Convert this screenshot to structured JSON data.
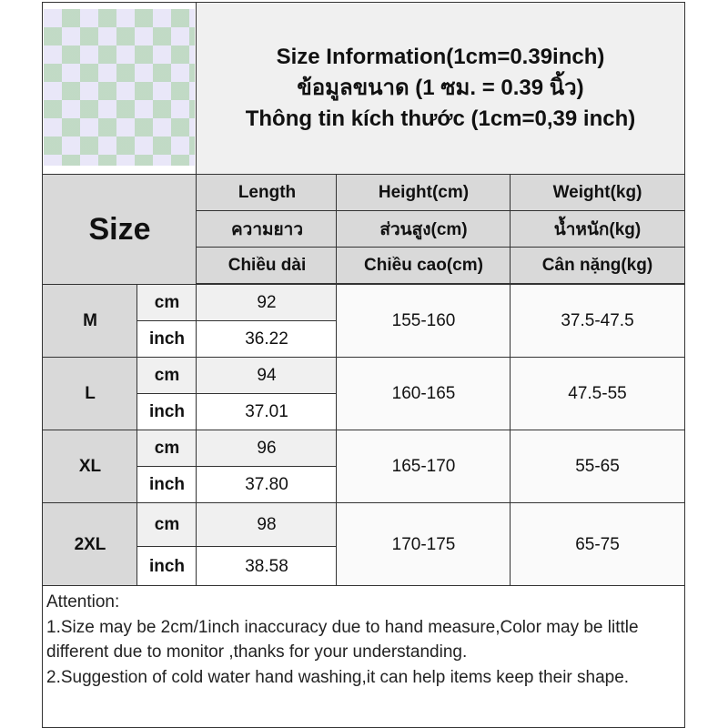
{
  "header": {
    "lines": [
      "Size Information(1cm=0.39inch)",
      "ข้อมูลขนาด (1 ซม. = 0.39 นิ้ว)",
      "Thông tin kích thước (1cm=0,39 inch)"
    ]
  },
  "table": {
    "size_label": "Size",
    "columns": [
      [
        "Length",
        "ความยาว",
        "Chiều dài"
      ],
      [
        "Height(cm)",
        "ส่วนสูง(cm)",
        "Chiều cao(cm)"
      ],
      [
        "Weight(kg)",
        "น้ำหนัก(kg)",
        "Cân nặng(kg)"
      ]
    ],
    "units": [
      "cm",
      "inch"
    ],
    "rows": [
      {
        "size": "M",
        "length_cm": "92",
        "length_inch": "36.22",
        "height": "155-160",
        "weight": "37.5-47.5"
      },
      {
        "size": "L",
        "length_cm": "94",
        "length_inch": "37.01",
        "height": "160-165",
        "weight": "47.5-55"
      },
      {
        "size": "XL",
        "length_cm": "96",
        "length_inch": "37.80",
        "height": "165-170",
        "weight": "55-65"
      },
      {
        "size": "2XL",
        "length_cm": "98",
        "length_inch": "38.58",
        "height": "170-175",
        "weight": "65-75"
      }
    ]
  },
  "attention": {
    "title": "Attention:",
    "lines": [
      "1.Size may be 2cm/1inch inaccuracy due to hand measure,Color may be little different due to monitor ,thanks for your understanding.",
      "2.Suggestion of cold water hand washing,it can help items keep their shape."
    ]
  }
}
